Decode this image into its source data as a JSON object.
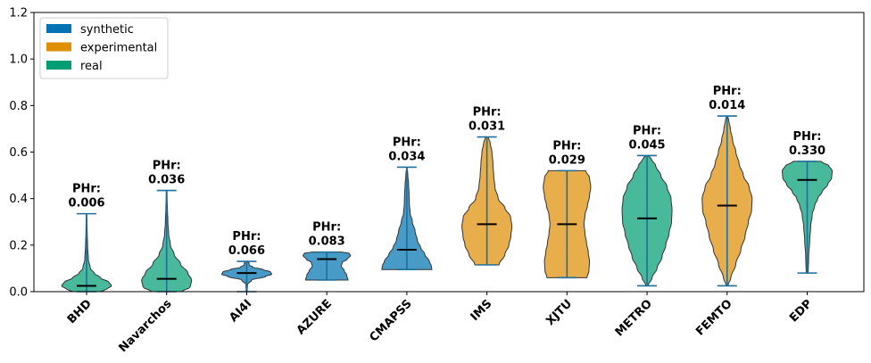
{
  "chart_data": {
    "type": "violin",
    "ylim": [
      0,
      1.2
    ],
    "yticks": [
      "0.0",
      "0.2",
      "0.4",
      "0.6",
      "0.8",
      "1.0",
      "1.2"
    ],
    "legend": {
      "placement": "top-left",
      "entries": [
        {
          "name": "synthetic",
          "color": "#0173b2"
        },
        {
          "name": "experimental",
          "color": "#de8f05"
        },
        {
          "name": "real",
          "color": "#029e73"
        }
      ]
    },
    "colors": {
      "synthetic": "#0173b2",
      "experimental": "#de8f05",
      "real": "#029e73"
    },
    "categories": [
      {
        "name": "BHD",
        "group": "real",
        "min": 0.0,
        "max": 0.335,
        "median": 0.025,
        "label_title": "PHr:",
        "label_value": "0.006",
        "profile": [
          [
            0.0,
            0.55
          ],
          [
            0.01,
            0.8
          ],
          [
            0.025,
            1.0
          ],
          [
            0.04,
            0.9
          ],
          [
            0.06,
            0.55
          ],
          [
            0.08,
            0.3
          ],
          [
            0.1,
            0.15
          ],
          [
            0.14,
            0.07
          ],
          [
            0.2,
            0.04
          ],
          [
            0.26,
            0.025
          ],
          [
            0.3,
            0.015
          ],
          [
            0.335,
            0.01
          ]
        ]
      },
      {
        "name": "Navarchos",
        "group": "real",
        "min": 0.0,
        "max": 0.435,
        "median": 0.055,
        "label_title": "PHr:",
        "label_value": "0.036",
        "profile": [
          [
            0.0,
            0.6
          ],
          [
            0.02,
            0.95
          ],
          [
            0.05,
            1.0
          ],
          [
            0.08,
            0.85
          ],
          [
            0.12,
            0.55
          ],
          [
            0.16,
            0.3
          ],
          [
            0.2,
            0.15
          ],
          [
            0.25,
            0.08
          ],
          [
            0.3,
            0.05
          ],
          [
            0.36,
            0.03
          ],
          [
            0.4,
            0.02
          ],
          [
            0.435,
            0.015
          ]
        ]
      },
      {
        "name": "AI4I",
        "group": "synthetic",
        "min": 0.0,
        "max": 0.13,
        "median": 0.08,
        "label_title": "PHr:",
        "label_value": "0.066",
        "profile": [
          [
            0.0,
            0.02
          ],
          [
            0.03,
            0.03
          ],
          [
            0.05,
            0.2
          ],
          [
            0.065,
            0.75
          ],
          [
            0.075,
            1.0
          ],
          [
            0.085,
            0.95
          ],
          [
            0.095,
            0.65
          ],
          [
            0.105,
            0.25
          ],
          [
            0.115,
            0.1
          ],
          [
            0.122,
            0.1
          ],
          [
            0.13,
            0.02
          ]
        ]
      },
      {
        "name": "AZURE",
        "group": "synthetic",
        "min": 0.05,
        "max": 0.17,
        "median": 0.14,
        "label_title": "PHr:",
        "label_value": "0.083",
        "profile": [
          [
            0.05,
            0.85
          ],
          [
            0.07,
            0.8
          ],
          [
            0.09,
            0.7
          ],
          [
            0.11,
            0.58
          ],
          [
            0.125,
            0.62
          ],
          [
            0.14,
            0.82
          ],
          [
            0.155,
            0.95
          ],
          [
            0.165,
            0.9
          ],
          [
            0.17,
            0.6
          ]
        ]
      },
      {
        "name": "CMAPSS",
        "group": "synthetic",
        "min": 0.095,
        "max": 0.535,
        "median": 0.18,
        "label_title": "PHr:",
        "label_value": "0.034",
        "profile": [
          [
            0.095,
            1.0
          ],
          [
            0.11,
            0.98
          ],
          [
            0.13,
            0.9
          ],
          [
            0.16,
            0.72
          ],
          [
            0.19,
            0.55
          ],
          [
            0.22,
            0.42
          ],
          [
            0.26,
            0.33
          ],
          [
            0.3,
            0.22
          ],
          [
            0.34,
            0.13
          ],
          [
            0.38,
            0.1
          ],
          [
            0.42,
            0.09
          ],
          [
            0.46,
            0.07
          ],
          [
            0.5,
            0.04
          ],
          [
            0.535,
            0.01
          ]
        ]
      },
      {
        "name": "IMS",
        "group": "experimental",
        "min": 0.115,
        "max": 0.665,
        "median": 0.29,
        "label_title": "PHr:",
        "label_value": "0.031",
        "profile": [
          [
            0.115,
            0.48
          ],
          [
            0.16,
            0.72
          ],
          [
            0.2,
            0.88
          ],
          [
            0.24,
            0.96
          ],
          [
            0.28,
            1.0
          ],
          [
            0.32,
            0.95
          ],
          [
            0.36,
            0.72
          ],
          [
            0.4,
            0.45
          ],
          [
            0.45,
            0.32
          ],
          [
            0.5,
            0.27
          ],
          [
            0.55,
            0.24
          ],
          [
            0.6,
            0.2
          ],
          [
            0.64,
            0.13
          ],
          [
            0.665,
            0.05
          ]
        ]
      },
      {
        "name": "XJTU",
        "group": "experimental",
        "min": 0.06,
        "max": 0.52,
        "median": 0.29,
        "label_title": "PHr:",
        "label_value": "0.029",
        "profile": [
          [
            0.06,
            0.8
          ],
          [
            0.09,
            0.88
          ],
          [
            0.13,
            0.9
          ],
          [
            0.17,
            0.85
          ],
          [
            0.21,
            0.78
          ],
          [
            0.25,
            0.72
          ],
          [
            0.29,
            0.68
          ],
          [
            0.33,
            0.72
          ],
          [
            0.37,
            0.82
          ],
          [
            0.41,
            0.9
          ],
          [
            0.45,
            0.95
          ],
          [
            0.49,
            0.9
          ],
          [
            0.52,
            0.75
          ]
        ]
      },
      {
        "name": "METRO",
        "group": "real",
        "min": 0.025,
        "max": 0.585,
        "median": 0.315,
        "label_title": "PHr:",
        "label_value": "0.045",
        "profile": [
          [
            0.025,
            0.04
          ],
          [
            0.06,
            0.2
          ],
          [
            0.1,
            0.4
          ],
          [
            0.15,
            0.6
          ],
          [
            0.2,
            0.75
          ],
          [
            0.25,
            0.88
          ],
          [
            0.3,
            0.98
          ],
          [
            0.35,
            1.0
          ],
          [
            0.4,
            0.96
          ],
          [
            0.45,
            0.8
          ],
          [
            0.5,
            0.55
          ],
          [
            0.54,
            0.35
          ],
          [
            0.57,
            0.18
          ],
          [
            0.585,
            0.04
          ]
        ]
      },
      {
        "name": "FEMTO",
        "group": "experimental",
        "min": 0.025,
        "max": 0.755,
        "median": 0.37,
        "label_title": "PHr:",
        "label_value": "0.014",
        "profile": [
          [
            0.025,
            0.03
          ],
          [
            0.06,
            0.15
          ],
          [
            0.12,
            0.35
          ],
          [
            0.18,
            0.55
          ],
          [
            0.24,
            0.72
          ],
          [
            0.3,
            0.85
          ],
          [
            0.35,
            0.98
          ],
          [
            0.4,
            1.0
          ],
          [
            0.45,
            0.88
          ],
          [
            0.5,
            0.65
          ],
          [
            0.55,
            0.48
          ],
          [
            0.6,
            0.35
          ],
          [
            0.65,
            0.22
          ],
          [
            0.7,
            0.13
          ],
          [
            0.735,
            0.07
          ],
          [
            0.755,
            0.02
          ]
        ]
      },
      {
        "name": "EDP",
        "group": "real",
        "min": 0.08,
        "max": 0.56,
        "median": 0.48,
        "label_title": "PHr:",
        "label_value": "0.330",
        "profile": [
          [
            0.08,
            0.04
          ],
          [
            0.15,
            0.06
          ],
          [
            0.22,
            0.1
          ],
          [
            0.28,
            0.14
          ],
          [
            0.33,
            0.2
          ],
          [
            0.37,
            0.3
          ],
          [
            0.4,
            0.42
          ],
          [
            0.43,
            0.6
          ],
          [
            0.46,
            0.82
          ],
          [
            0.49,
            0.98
          ],
          [
            0.52,
            1.0
          ],
          [
            0.54,
            0.88
          ],
          [
            0.56,
            0.55
          ]
        ]
      }
    ]
  }
}
